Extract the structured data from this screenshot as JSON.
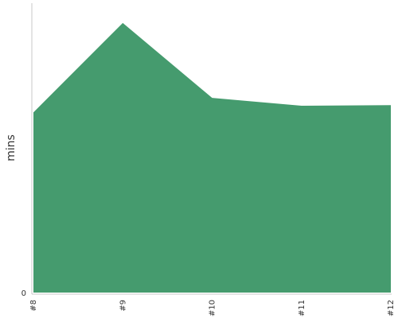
{
  "chart_data": {
    "type": "area",
    "categories": [
      "#8",
      "#9",
      "#10",
      "#11",
      "#12"
    ],
    "series": [
      {
        "values": [
          137,
          205,
          148,
          142,
          142.5
        ]
      }
    ],
    "xlabel": "",
    "ylabel": "mins",
    "ylim": [
      0,
      220
    ],
    "y_ticks": [
      "0"
    ],
    "grid": false,
    "fill_color": "#459b6e"
  }
}
